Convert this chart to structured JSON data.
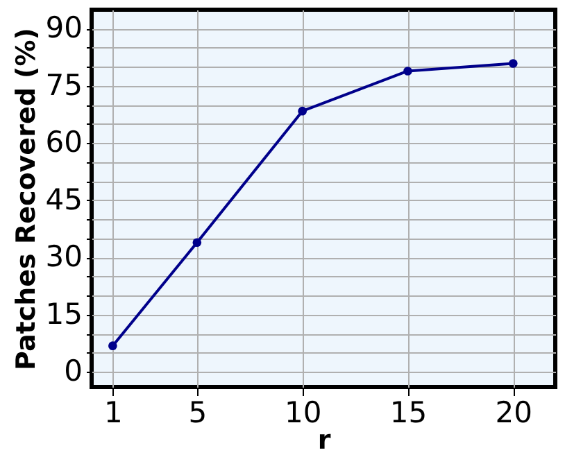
{
  "chart_data": {
    "type": "line",
    "xlabel": "r",
    "ylabel": "Patches Recovered (%)",
    "x": [
      1,
      5,
      10,
      15,
      20
    ],
    "series": [
      {
        "color": "#00008b",
        "values": [
          6.8,
          33.9,
          68.4,
          78.9,
          80.9
        ]
      }
    ],
    "xlim": [
      0,
      22
    ],
    "ylim": [
      -4,
      95
    ],
    "xticks": [
      1,
      5,
      10,
      15,
      20
    ],
    "yticks": [
      0,
      {
        "value": 5,
        "label": null
      },
      {
        "value": 10,
        "label": null
      },
      15,
      {
        "value": 20,
        "label": null
      },
      {
        "value": 25,
        "label": null
      },
      30,
      {
        "value": 35,
        "label": null
      },
      {
        "value": 40,
        "label": null
      },
      45,
      {
        "value": 50,
        "label": null
      },
      {
        "value": 55,
        "label": null
      },
      60,
      {
        "value": 65,
        "label": null
      },
      {
        "value": 70,
        "label": null
      },
      75,
      {
        "value": 80,
        "label": null
      },
      {
        "value": 85,
        "label": null
      },
      90
    ],
    "grid": true,
    "marker": "circle",
    "line_style": "solid"
  }
}
